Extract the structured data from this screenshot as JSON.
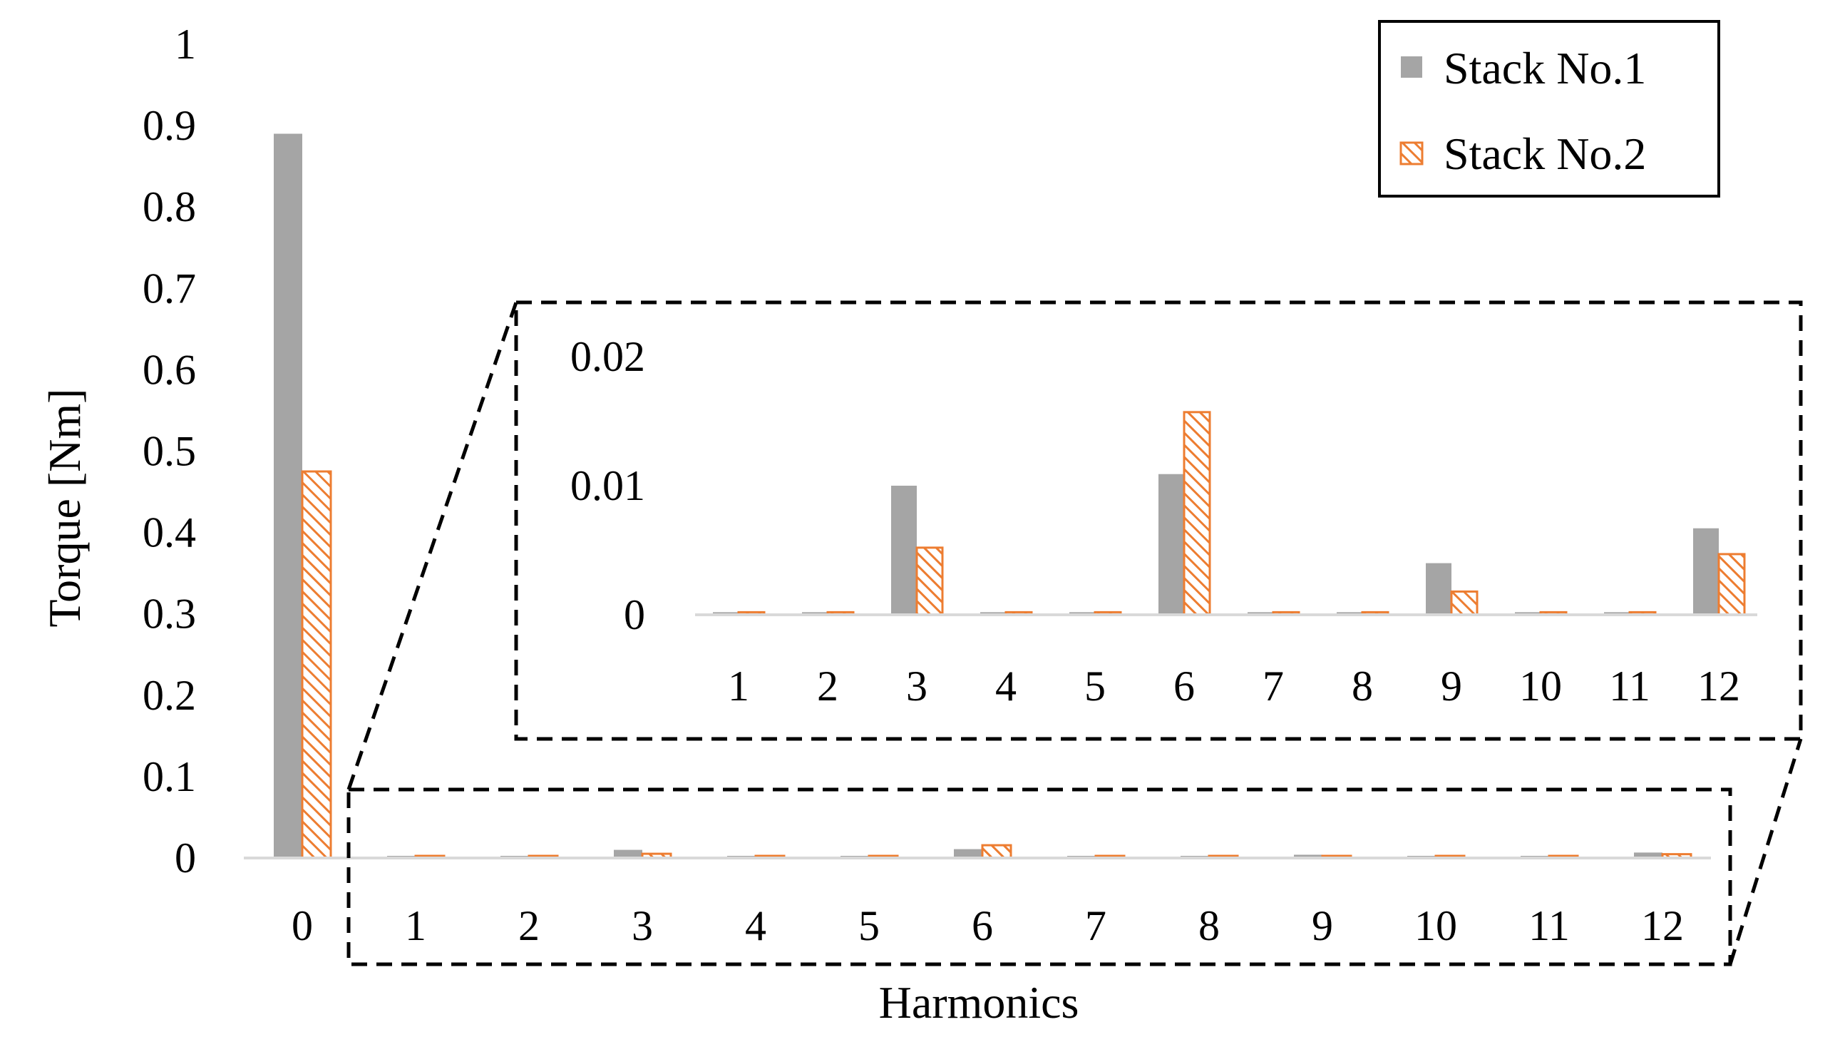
{
  "chart_data": [
    {
      "type": "bar",
      "categories": [
        "0",
        "1",
        "2",
        "3",
        "4",
        "5",
        "6",
        "7",
        "8",
        "9",
        "10",
        "11",
        "12"
      ],
      "series": [
        {
          "name": "Stack No.1",
          "color": "#a5a5a5",
          "pattern": "solid",
          "values": [
            0.89,
            0.0002,
            0.0002,
            0.01,
            0.0002,
            0.0002,
            0.0109,
            0.0002,
            0.0002,
            0.004,
            0.0002,
            0.0002,
            0.0067
          ]
        },
        {
          "name": "Stack No.2",
          "color": "#ed7d31",
          "pattern": "hatched",
          "values": [
            0.475,
            0.0002,
            0.0002,
            0.0052,
            0.0002,
            0.0002,
            0.0157,
            0.0002,
            0.0002,
            0.0018,
            0.0002,
            0.0002,
            0.0047
          ]
        }
      ],
      "yticks": [
        "0",
        "0.1",
        "0.2",
        "0.3",
        "0.4",
        "0.5",
        "0.6",
        "0.7",
        "0.8",
        "0.9",
        "1"
      ],
      "ylim": [
        0,
        1
      ],
      "xlabel": "Harmonics",
      "ylabel": "Torque [Nm]",
      "legend": "top-right",
      "grid": false
    },
    {
      "type": "bar",
      "role": "zoomed inset",
      "categories": [
        "1",
        "2",
        "3",
        "4",
        "5",
        "6",
        "7",
        "8",
        "9",
        "10",
        "11",
        "12"
      ],
      "series": [
        {
          "name": "Stack No.1",
          "values": [
            0.0002,
            0.0002,
            0.01,
            0.0002,
            0.0002,
            0.0109,
            0.0002,
            0.0002,
            0.004,
            0.0002,
            0.0002,
            0.0067
          ]
        },
        {
          "name": "Stack No.2",
          "values": [
            0.0002,
            0.0002,
            0.0052,
            0.0002,
            0.0002,
            0.0157,
            0.0002,
            0.0002,
            0.0018,
            0.0002,
            0.0002,
            0.0047
          ]
        }
      ],
      "yticks": [
        "0",
        "0.01",
        "0.02"
      ],
      "ylim": [
        0,
        0.02
      ],
      "grid": false
    }
  ]
}
